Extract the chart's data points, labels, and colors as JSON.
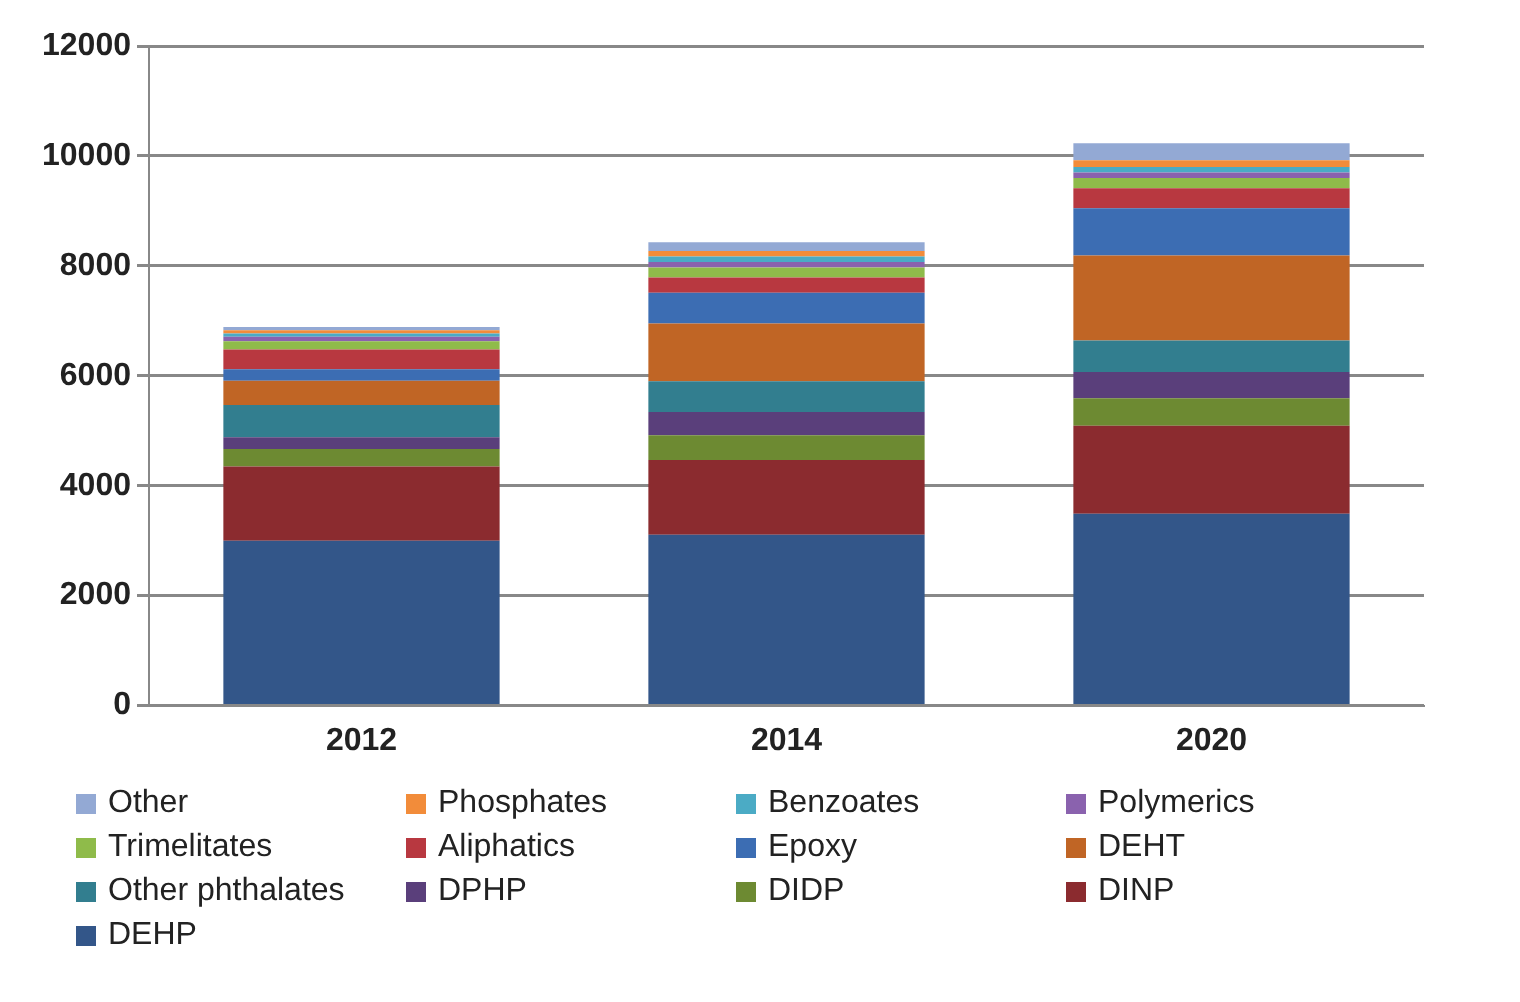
{
  "chart_data": {
    "type": "bar",
    "stacked": true,
    "categories": [
      "2012",
      "2014",
      "2020"
    ],
    "series": [
      {
        "name": "DEHP",
        "color": "#335689",
        "values": [
          3000,
          3110,
          3490
        ]
      },
      {
        "name": "DINP",
        "color": "#8b2b2f",
        "values": [
          1350,
          1360,
          1600
        ]
      },
      {
        "name": "DIDP",
        "color": "#6d8a32",
        "values": [
          320,
          450,
          500
        ]
      },
      {
        "name": "DPHP",
        "color": "#5a3f7b",
        "values": [
          210,
          420,
          480
        ]
      },
      {
        "name": "Other phthalates",
        "color": "#327e8f",
        "values": [
          590,
          560,
          570
        ]
      },
      {
        "name": "DEHT",
        "color": "#c06525",
        "values": [
          440,
          1050,
          1550
        ]
      },
      {
        "name": "Epoxy",
        "color": "#3c6db3",
        "values": [
          210,
          560,
          860
        ]
      },
      {
        "name": "Aliphatics",
        "color": "#b83840",
        "values": [
          360,
          280,
          360
        ]
      },
      {
        "name": "Trimelitates",
        "color": "#8fbb4a",
        "values": [
          150,
          180,
          190
        ]
      },
      {
        "name": "Polymerics",
        "color": "#8a62ae",
        "values": [
          80,
          100,
          100
        ]
      },
      {
        "name": "Benzoates",
        "color": "#4babc5",
        "values": [
          60,
          100,
          100
        ]
      },
      {
        "name": "Phosphates",
        "color": "#f28c3a",
        "values": [
          60,
          100,
          120
        ]
      },
      {
        "name": "Other",
        "color": "#93a9d4",
        "values": [
          60,
          160,
          310
        ]
      }
    ],
    "ylim": [
      0,
      12000
    ],
    "yticks": [
      0,
      2000,
      4000,
      6000,
      8000,
      10000,
      12000
    ],
    "grid": "y",
    "legend": "bottom"
  }
}
